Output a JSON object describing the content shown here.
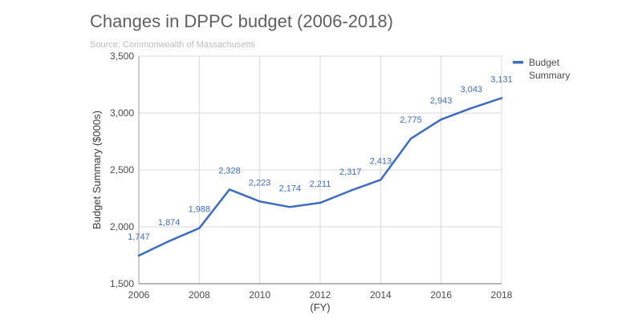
{
  "title": "Changes in DPPC budget (2006-2018)",
  "subtitle": "Source: Commonwealth of Massachusetts",
  "colors": {
    "series": "#3d6cc0",
    "grid": "#d9d9d9",
    "axis": "#9e9e9e"
  },
  "chart_data": {
    "type": "line",
    "title": "Changes in DPPC budget (2006-2018)",
    "subtitle": "Source: Commonwealth of Massachusetts",
    "xlabel": "(FY)",
    "ylabel": "Budget Summary ($000s)",
    "x": [
      2006,
      2007,
      2008,
      2009,
      2010,
      2011,
      2012,
      2013,
      2014,
      2015,
      2016,
      2017,
      2018
    ],
    "xticks": [
      "2006",
      "2008",
      "2010",
      "2012",
      "2014",
      "2016",
      "2018"
    ],
    "yticks": [
      "1,500",
      "2,000",
      "2,500",
      "3,000",
      "3,500"
    ],
    "xlim": [
      2006,
      2018
    ],
    "ylim": [
      1500,
      3500
    ],
    "grid": true,
    "legend_position": "top-right",
    "series": [
      {
        "name": "Budget Summary",
        "legend_lines": [
          "Budget",
          "Summary"
        ],
        "values": [
          1747,
          1874,
          1988,
          2328,
          2223,
          2174,
          2211,
          2317,
          2413,
          2775,
          2943,
          3043,
          3131
        ],
        "labels": [
          "1,747",
          "1,874",
          "1,988",
          "2,328",
          "2,223",
          "2,174",
          "2,211",
          "2,317",
          "2,413",
          "2,775",
          "2,943",
          "3,043",
          "3,131"
        ]
      }
    ]
  }
}
